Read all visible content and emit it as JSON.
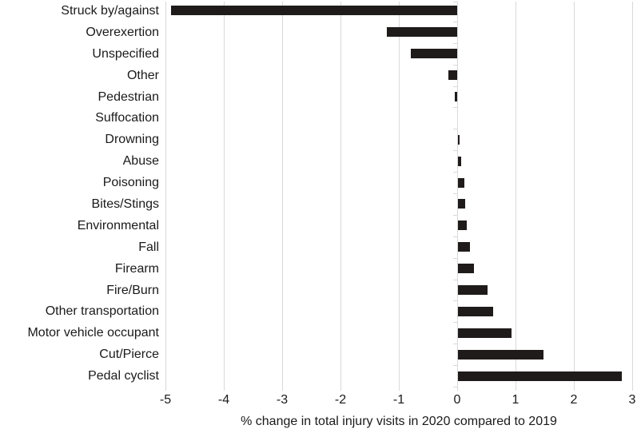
{
  "chart_data": {
    "type": "bar",
    "orientation": "horizontal",
    "title": "",
    "xlabel": "% change in total injury visits in 2020 compared to 2019",
    "ylabel": "",
    "xlim": [
      -5,
      3
    ],
    "x_ticks": [
      -5,
      -4,
      -3,
      -2,
      -1,
      0,
      1,
      2,
      3
    ],
    "grid": "vertical-only",
    "legend": "none",
    "bar_color": "#1f1b1a",
    "gridline_color": "#d9d9d9",
    "text_color": "#1a1a1a",
    "background_color": "#ffffff",
    "categories": [
      "Struck by/against",
      "Overexertion",
      "Unspecified",
      "Other",
      "Pedestrian",
      "Suffocation",
      "Drowning",
      "Abuse",
      "Poisoning",
      "Bites/Stings",
      "Environmental",
      "Fall",
      "Firearm",
      "Fire/Burn",
      "Other transportation",
      "Motor vehicle occupant",
      "Cut/Pierce",
      "Pedal cyclist"
    ],
    "values": [
      -4.9,
      -1.2,
      -0.8,
      -0.15,
      -0.04,
      0,
      0.03,
      0.06,
      0.11,
      0.13,
      0.15,
      0.21,
      0.27,
      0.5,
      0.6,
      0.92,
      1.47,
      2.81
    ]
  }
}
